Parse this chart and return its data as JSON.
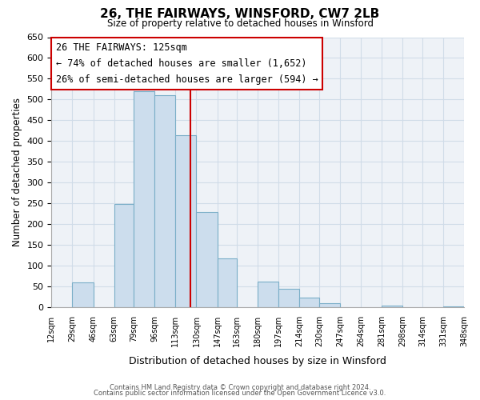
{
  "title": "26, THE FAIRWAYS, WINSFORD, CW7 2LB",
  "subtitle": "Size of property relative to detached houses in Winsford",
  "xlabel": "Distribution of detached houses by size in Winsford",
  "ylabel": "Number of detached properties",
  "bar_color": "#ccdded",
  "bar_edge_color": "#7aaec8",
  "bin_edges": [
    12,
    29,
    46,
    63,
    79,
    96,
    113,
    130,
    147,
    163,
    180,
    197,
    214,
    230,
    247,
    264,
    281,
    298,
    314,
    331,
    348
  ],
  "bar_heights": [
    0,
    60,
    0,
    248,
    521,
    510,
    415,
    229,
    117,
    0,
    63,
    45,
    23,
    10,
    0,
    0,
    4,
    0,
    0,
    3
  ],
  "xlim": [
    12,
    348
  ],
  "ylim": [
    0,
    650
  ],
  "yticks": [
    0,
    50,
    100,
    150,
    200,
    250,
    300,
    350,
    400,
    450,
    500,
    550,
    600,
    650
  ],
  "xtick_labels": [
    "12sqm",
    "29sqm",
    "46sqm",
    "63sqm",
    "79sqm",
    "96sqm",
    "113sqm",
    "130sqm",
    "147sqm",
    "163sqm",
    "180sqm",
    "197sqm",
    "214sqm",
    "230sqm",
    "247sqm",
    "264sqm",
    "281sqm",
    "298sqm",
    "314sqm",
    "331sqm",
    "348sqm"
  ],
  "xtick_positions": [
    12,
    29,
    46,
    63,
    79,
    96,
    113,
    130,
    147,
    163,
    180,
    197,
    214,
    230,
    247,
    264,
    281,
    298,
    314,
    331,
    348
  ],
  "property_line_x": 125,
  "property_line_color": "#cc0000",
  "annotation_title": "26 THE FAIRWAYS: 125sqm",
  "annotation_line1": "← 74% of detached houses are smaller (1,652)",
  "annotation_line2": "26% of semi-detached houses are larger (594) →",
  "annotation_box_facecolor": "#ffffff",
  "annotation_box_edgecolor": "#cc0000",
  "grid_color": "#d0dce8",
  "axes_facecolor": "#eef2f7",
  "fig_facecolor": "#ffffff",
  "footer_line1": "Contains HM Land Registry data © Crown copyright and database right 2024.",
  "footer_line2": "Contains public sector information licensed under the Open Government Licence v3.0."
}
